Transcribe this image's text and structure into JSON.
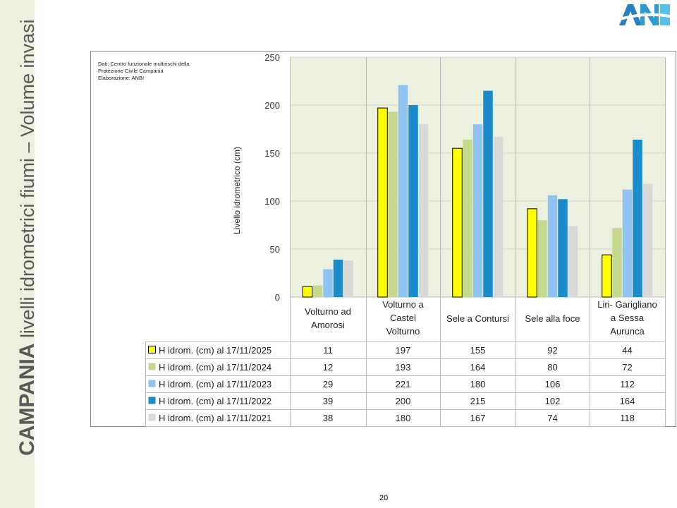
{
  "slide": {
    "title_bold": "CAMPANIA",
    "title_rest": " livelli idrometrici fiumi – Volume invasi",
    "page_number": "20",
    "logo_text": "ANBI"
  },
  "note": {
    "line1": "Dati: Centro funzionale multirischi della",
    "line2": "Protezione Civile Campania",
    "line3": "Elaborazione: ANBI"
  },
  "chart_data": {
    "type": "bar",
    "title": "",
    "ylabel": "Livello idrometrico (cm)",
    "xlabel": "",
    "ylim": [
      0,
      250
    ],
    "yticks": [
      0,
      50,
      100,
      150,
      200,
      250
    ],
    "grid": true,
    "legend": "data-table",
    "categories": [
      [
        "Volturno ad",
        "Amorosi"
      ],
      [
        "Volturno a",
        "Castel",
        "Volturno"
      ],
      [
        "Sele a Contursi"
      ],
      [
        "Sele alla foce"
      ],
      [
        "Liri- Garigliano",
        "a Sessa",
        "Aurunca"
      ]
    ],
    "series": [
      {
        "name": "H idrom. (cm) al 17/11/2025",
        "color": "#ffff00",
        "values": [
          11,
          197,
          155,
          92,
          44
        ]
      },
      {
        "name": "H idrom. (cm) al 17/11/2024",
        "color": "#c4d98e",
        "values": [
          12,
          193,
          164,
          80,
          72
        ]
      },
      {
        "name": "H idrom. (cm) al 17/11/2023",
        "color": "#8fc3f2",
        "values": [
          29,
          221,
          180,
          106,
          112
        ]
      },
      {
        "name": "H idrom. (cm) al 17/11/2022",
        "color": "#1a8ccc",
        "values": [
          39,
          200,
          215,
          102,
          164
        ]
      },
      {
        "name": "H idrom. (cm) al 17/11/2021",
        "color": "#d9d9d9",
        "values": [
          38,
          180,
          167,
          74,
          118
        ]
      }
    ]
  }
}
